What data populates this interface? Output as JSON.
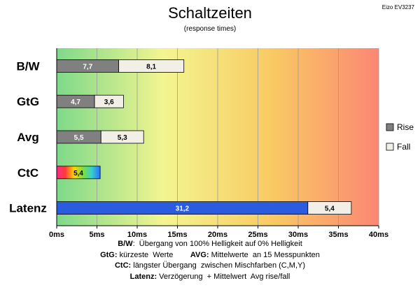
{
  "corner_label": "Eizo EV3237",
  "chart_data": {
    "type": "bar",
    "orientation": "horizontal",
    "stacked": true,
    "title": "Schaltzeiten",
    "subtitle": "(response times)",
    "categories": [
      "B/W",
      "GtG",
      "Avg",
      "CtC",
      "Latenz"
    ],
    "series": [
      {
        "name": "Rise",
        "color": "#808080",
        "values": [
          7.7,
          4.7,
          5.5,
          5.4,
          31.2
        ]
      },
      {
        "name": "Fall",
        "color": "#f2f0e6",
        "values": [
          8.1,
          3.6,
          5.3,
          null,
          5.4
        ]
      }
    ],
    "labels": {
      "Rise": [
        "7,7",
        "4,7",
        "5,5",
        "5,4",
        "31,2"
      ],
      "Fall": [
        "8,1",
        "3,6",
        "5,3",
        "",
        "5,4"
      ]
    },
    "special_fills": {
      "CtC": "rainbow",
      "Latenz": "#2b5ce0"
    },
    "xlim": [
      0,
      40
    ],
    "x_ticks": [
      0,
      5,
      10,
      15,
      20,
      25,
      30,
      35,
      40
    ],
    "x_tick_labels": [
      "0ms",
      "5ms",
      "10ms",
      "15ms",
      "20ms",
      "25ms",
      "30ms",
      "35ms",
      "40ms"
    ],
    "background_gradient": [
      "#7ed98a",
      "#f3f590",
      "#f9ca63",
      "#fb8774"
    ],
    "grid": true,
    "legend_position": "right"
  },
  "notes": [
    [
      {
        "bold": "B/W"
      },
      {
        "text": ":  Übergang von 100% Helligkeit auf 0% Helligkeit"
      }
    ],
    [
      {
        "bold": "GtG:"
      },
      {
        "text": " kürzeste  Werte        "
      },
      {
        "bold": "AVG:"
      },
      {
        "text": " Mittelwerte  an 15 Messpunkten"
      }
    ],
    [
      {
        "bold": "CtC:"
      },
      {
        "text": " längster Übergang  zwischen Mischfarben (C,M,Y)"
      }
    ],
    [
      {
        "bold": "Latenz:"
      },
      {
        "text": " Verzögerung  + Mittelwert  Avg rise/fall"
      }
    ]
  ]
}
